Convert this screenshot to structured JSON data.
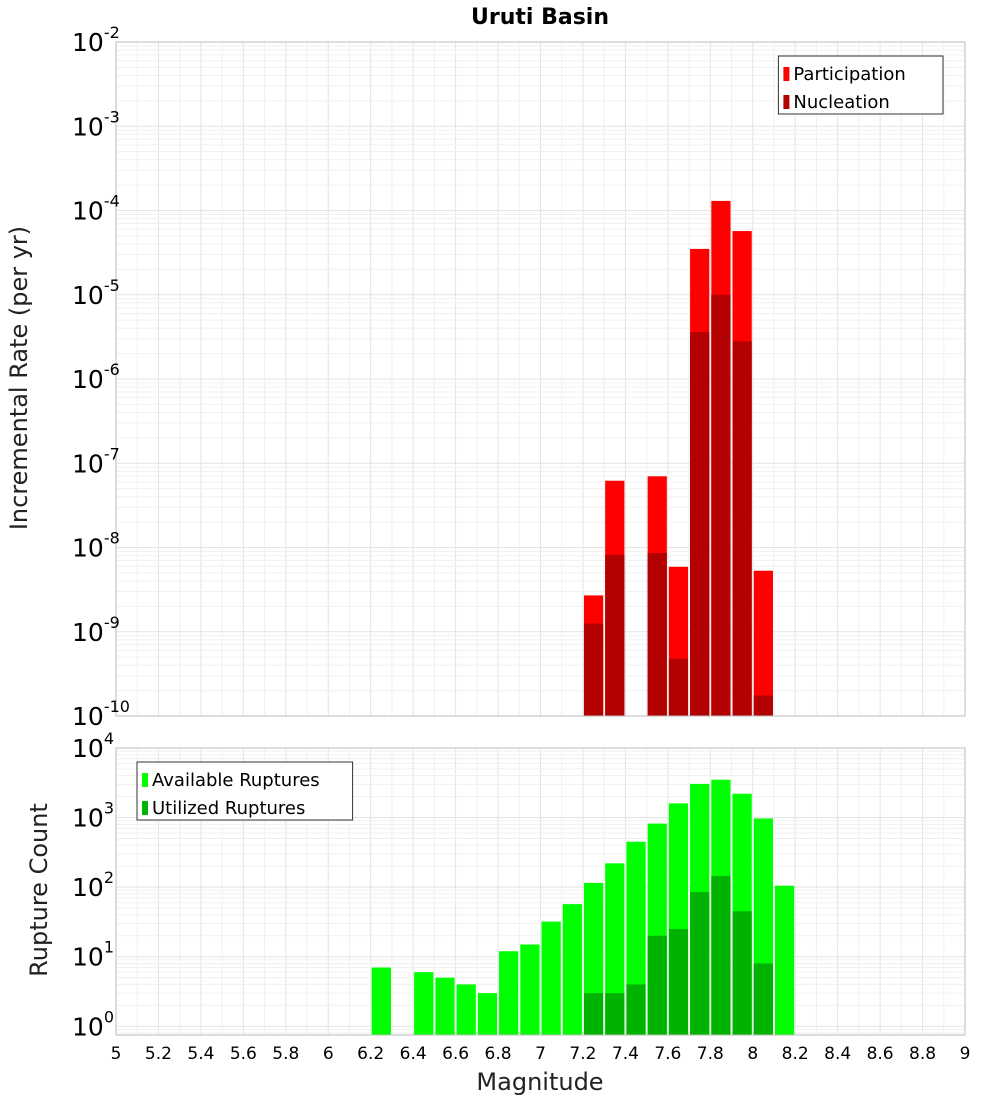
{
  "chart_data": [
    {
      "type": "bar",
      "title": "Uruti Basin",
      "ylabel": "Incremental Rate (per yr)",
      "xlabel": "",
      "yscale": "log",
      "ylim": [
        1e-10,
        0.01
      ],
      "xlim": [
        5,
        9
      ],
      "bar_width": 0.1,
      "legend_position": "top-right",
      "y_ticks": [
        {
          "base": "10",
          "exp": "-10"
        },
        {
          "base": "10",
          "exp": "-9"
        },
        {
          "base": "10",
          "exp": "-8"
        },
        {
          "base": "10",
          "exp": "-7"
        },
        {
          "base": "10",
          "exp": "-6"
        },
        {
          "base": "10",
          "exp": "-5"
        },
        {
          "base": "10",
          "exp": "-4"
        },
        {
          "base": "10",
          "exp": "-3"
        },
        {
          "base": "10",
          "exp": "-2"
        }
      ],
      "series": [
        {
          "name": "Participation",
          "color": "#ff0000",
          "x": [
            7.25,
            7.35,
            7.55,
            7.65,
            7.75,
            7.85,
            7.95,
            8.05
          ],
          "values": [
            2.7e-09,
            6.2e-08,
            7e-08,
            5.9e-09,
            3.5e-05,
            0.00013,
            5.7e-05,
            5.3e-09
          ]
        },
        {
          "name": "Nucleation",
          "color": "#b30000",
          "x": [
            7.25,
            7.35,
            7.55,
            7.65,
            7.75,
            7.85,
            7.95,
            8.05
          ],
          "values": [
            1.25e-09,
            8.2e-09,
            8.6e-09,
            4.8e-10,
            3.6e-06,
            1e-05,
            2.8e-06,
            1.75e-10
          ]
        }
      ]
    },
    {
      "type": "bar",
      "title": "",
      "ylabel": "Rupture Count",
      "xlabel": "Magnitude",
      "yscale": "log",
      "ylim": [
        0.75,
        10000
      ],
      "xlim": [
        5,
        9
      ],
      "bar_width": 0.1,
      "legend_position": "top-left",
      "y_ticks": [
        {
          "base": "10",
          "exp": "0"
        },
        {
          "base": "10",
          "exp": "1"
        },
        {
          "base": "10",
          "exp": "2"
        },
        {
          "base": "10",
          "exp": "3"
        },
        {
          "base": "10",
          "exp": "4"
        }
      ],
      "x_tick_labels": [
        "5",
        "5.2",
        "5.4",
        "5.6",
        "5.8",
        "6",
        "6.2",
        "6.4",
        "6.6",
        "6.8",
        "7",
        "7.2",
        "7.4",
        "7.6",
        "7.8",
        "8",
        "8.2",
        "8.4",
        "8.6",
        "8.8",
        "9"
      ],
      "series": [
        {
          "name": "Available Ruptures",
          "color": "#00ff00",
          "x": [
            6.25,
            6.45,
            6.55,
            6.65,
            6.75,
            6.85,
            6.95,
            7.05,
            7.15,
            7.25,
            7.35,
            7.45,
            7.55,
            7.65,
            7.75,
            7.85,
            7.95,
            8.05,
            8.15
          ],
          "values": [
            7,
            6,
            5,
            4,
            3,
            12,
            15,
            32,
            57,
            115,
            220,
            450,
            820,
            1600,
            3050,
            3500,
            2200,
            970,
            105
          ]
        },
        {
          "name": "Utilized Ruptures",
          "color": "#00b300",
          "x": [
            7.25,
            7.35,
            7.45,
            7.55,
            7.65,
            7.75,
            7.85,
            7.95,
            8.05
          ],
          "values": [
            3,
            3,
            4,
            20,
            25,
            85,
            145,
            45,
            8
          ]
        }
      ]
    }
  ]
}
